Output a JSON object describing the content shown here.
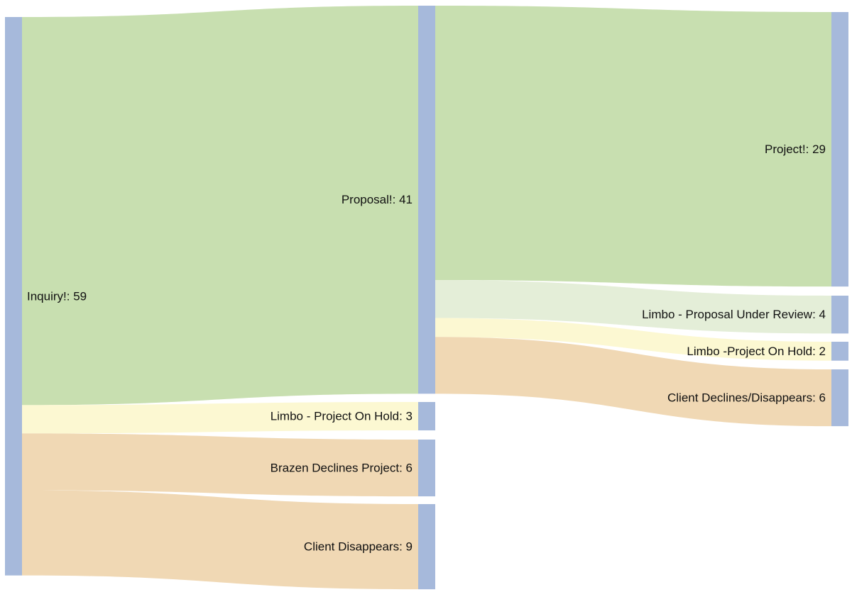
{
  "chart_data": {
    "type": "sankey",
    "nodes": [
      {
        "id": "inquiry",
        "name": "Inquiry!",
        "value": 59,
        "label": "Inquiry!: 59"
      },
      {
        "id": "proposal",
        "name": "Proposal!",
        "value": 41,
        "label": "Proposal!: 41"
      },
      {
        "id": "limbo_hold_1",
        "name": "Limbo - Project On Hold",
        "value": 3,
        "label": "Limbo - Project On Hold: 3"
      },
      {
        "id": "brazen_declines",
        "name": "Brazen Declines Project",
        "value": 6,
        "label": "Brazen Declines Project: 6"
      },
      {
        "id": "client_disappears",
        "name": "Client Disappears",
        "value": 9,
        "label": "Client Disappears: 9"
      },
      {
        "id": "project",
        "name": "Project!",
        "value": 29,
        "label": "Project!: 29"
      },
      {
        "id": "limbo_review",
        "name": "Limbo - Proposal Under Review",
        "value": 4,
        "label": "Limbo - Proposal Under Review: 4"
      },
      {
        "id": "limbo_hold_2",
        "name": "Limbo -Project On Hold",
        "value": 2,
        "label": "Limbo -Project On Hold: 2"
      },
      {
        "id": "client_declines",
        "name": "Client Declines/Disappears",
        "value": 6,
        "label": "Client Declines/Disappears: 6"
      }
    ],
    "links": [
      {
        "source": "inquiry",
        "target": "proposal",
        "value": 41,
        "color": "#c8dfb0"
      },
      {
        "source": "inquiry",
        "target": "limbo_hold_1",
        "value": 3,
        "color": "#fcf8d2"
      },
      {
        "source": "inquiry",
        "target": "brazen_declines",
        "value": 6,
        "color": "#f0d8b4"
      },
      {
        "source": "inquiry",
        "target": "client_disappears",
        "value": 9,
        "color": "#f0d8b4"
      },
      {
        "source": "proposal",
        "target": "project",
        "value": 29,
        "color": "#c8dfb0"
      },
      {
        "source": "proposal",
        "target": "limbo_review",
        "value": 4,
        "color": "#e4eed8"
      },
      {
        "source": "proposal",
        "target": "limbo_hold_2",
        "value": 2,
        "color": "#fcf8d2"
      },
      {
        "source": "proposal",
        "target": "client_declines",
        "value": 6,
        "color": "#f0d8b4"
      }
    ],
    "node_color": "#a6b9db"
  }
}
